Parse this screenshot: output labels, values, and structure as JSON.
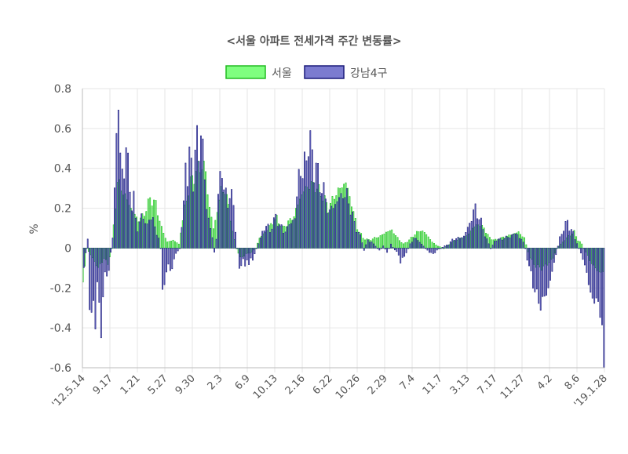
{
  "chart_data": {
    "type": "bar",
    "title": "<서울 아파트 전세가격 주간 변동률>",
    "ylabel": "%",
    "xlabel": "",
    "ylim": [
      -0.6,
      0.8
    ],
    "yticks": [
      "0.8",
      "0.6",
      "0.4",
      "0.2",
      "0",
      "-0.2",
      "-0.4",
      "-0.6"
    ],
    "ytick_values": [
      0.8,
      0.6,
      0.4,
      0.2,
      0,
      -0.2,
      -0.4,
      -0.6
    ],
    "xtick_labels": [
      "'12.5.14",
      "9.17",
      "1.21",
      "5.27",
      "9.30",
      "2.3",
      "6.9",
      "10.13",
      "2.16",
      "6.22",
      "10.26",
      "2.29",
      "7.4",
      "11.7",
      "3.13",
      "7.17",
      "11.27",
      "4.2",
      "8.6",
      "'19.1.28"
    ],
    "legend_position": "top",
    "grid": true,
    "colors": {
      "seoul_fill": "#7fff7f",
      "seoul_stroke": "#22bb22",
      "gangnam_fill": "#7b7bd0",
      "gangnam_stroke": "#1a1a7a",
      "grid": "#e6e6e6",
      "axis": "#bbbbbb"
    },
    "series": [
      {
        "name": "서울",
        "anchors": [
          [
            0,
            -0.18
          ],
          [
            2,
            0.0
          ],
          [
            5,
            -0.05
          ],
          [
            8,
            -0.1
          ],
          [
            11,
            -0.05
          ],
          [
            13,
            -0.08
          ],
          [
            15,
            0.0
          ],
          [
            18,
            0.33
          ],
          [
            20,
            0.3
          ],
          [
            23,
            0.24
          ],
          [
            26,
            0.18
          ],
          [
            29,
            0.14
          ],
          [
            32,
            0.17
          ],
          [
            35,
            0.25
          ],
          [
            38,
            0.22
          ],
          [
            41,
            0.1
          ],
          [
            44,
            0.03
          ],
          [
            47,
            0.04
          ],
          [
            50,
            0.02
          ],
          [
            53,
            0.2
          ],
          [
            56,
            0.33
          ],
          [
            59,
            0.38
          ],
          [
            62,
            0.42
          ],
          [
            64,
            0.38
          ],
          [
            66,
            0.2
          ],
          [
            68,
            0.1
          ],
          [
            70,
            0.18
          ],
          [
            72,
            0.3
          ],
          [
            74,
            0.28
          ],
          [
            76,
            0.22
          ],
          [
            78,
            0.08
          ],
          [
            80,
            0.0
          ],
          [
            82,
            -0.05
          ],
          [
            85,
            -0.03
          ],
          [
            88,
            -0.02
          ],
          [
            90,
            0.0
          ],
          [
            92,
            0.05
          ],
          [
            95,
            0.08
          ],
          [
            98,
            0.12
          ],
          [
            101,
            0.15
          ],
          [
            104,
            0.1
          ],
          [
            107,
            0.13
          ],
          [
            110,
            0.16
          ],
          [
            113,
            0.25
          ],
          [
            116,
            0.3
          ],
          [
            119,
            0.32
          ],
          [
            122,
            0.3
          ],
          [
            125,
            0.26
          ],
          [
            128,
            0.2
          ],
          [
            131,
            0.26
          ],
          [
            134,
            0.3
          ],
          [
            137,
            0.33
          ],
          [
            140,
            0.22
          ],
          [
            143,
            0.1
          ],
          [
            146,
            0.05
          ],
          [
            149,
            0.04
          ],
          [
            152,
            0.05
          ],
          [
            155,
            0.06
          ],
          [
            158,
            0.08
          ],
          [
            161,
            0.09
          ],
          [
            164,
            0.05
          ],
          [
            167,
            0.02
          ],
          [
            170,
            0.04
          ],
          [
            173,
            0.07
          ],
          [
            176,
            0.09
          ],
          [
            179,
            0.07
          ],
          [
            182,
            0.03
          ],
          [
            185,
            0.01
          ],
          [
            188,
            0.0
          ],
          [
            191,
            0.02
          ],
          [
            194,
            0.04
          ],
          [
            197,
            0.05
          ],
          [
            200,
            0.06
          ],
          [
            203,
            0.1
          ],
          [
            206,
            0.12
          ],
          [
            209,
            0.1
          ],
          [
            212,
            0.05
          ],
          [
            215,
            0.04
          ],
          [
            218,
            0.05
          ],
          [
            221,
            0.06
          ],
          [
            224,
            0.07
          ],
          [
            227,
            0.08
          ],
          [
            230,
            0.05
          ],
          [
            233,
            -0.05
          ],
          [
            236,
            -0.09
          ],
          [
            239,
            -0.1
          ],
          [
            242,
            -0.08
          ],
          [
            245,
            -0.05
          ],
          [
            247,
            0.0
          ],
          [
            250,
            0.03
          ],
          [
            253,
            0.06
          ],
          [
            256,
            0.08
          ],
          [
            258,
            0.04
          ],
          [
            260,
            0.02
          ],
          [
            262,
            -0.02
          ],
          [
            264,
            -0.06
          ],
          [
            266,
            -0.09
          ],
          [
            269,
            -0.12
          ],
          [
            271,
            -0.12
          ]
        ]
      },
      {
        "name": "강남4구",
        "anchors": [
          [
            0,
            -0.1
          ],
          [
            2,
            0.05
          ],
          [
            3,
            -0.3
          ],
          [
            4,
            -0.38
          ],
          [
            5,
            -0.25
          ],
          [
            6,
            -0.35
          ],
          [
            7,
            -0.2
          ],
          [
            8,
            -0.3
          ],
          [
            9,
            -0.37
          ],
          [
            10,
            -0.25
          ],
          [
            11,
            -0.15
          ],
          [
            13,
            -0.1
          ],
          [
            15,
            0.05
          ],
          [
            16,
            0.35
          ],
          [
            17,
            0.55
          ],
          [
            18,
            0.65
          ],
          [
            19,
            0.5
          ],
          [
            20,
            0.4
          ],
          [
            21,
            0.35
          ],
          [
            22,
            0.5
          ],
          [
            23,
            0.45
          ],
          [
            24,
            0.3
          ],
          [
            25,
            0.2
          ],
          [
            26,
            0.25
          ],
          [
            27,
            0.15
          ],
          [
            28,
            0.1
          ],
          [
            29,
            0.12
          ],
          [
            30,
            0.15
          ],
          [
            31,
            0.18
          ],
          [
            32,
            0.13
          ],
          [
            33,
            0.1
          ],
          [
            34,
            0.15
          ],
          [
            35,
            0.17
          ],
          [
            37,
            0.1
          ],
          [
            39,
            0.05
          ],
          [
            40,
            0.0
          ],
          [
            41,
            -0.2
          ],
          [
            42,
            -0.18
          ],
          [
            43,
            -0.12
          ],
          [
            44,
            -0.08
          ],
          [
            45,
            -0.12
          ],
          [
            46,
            -0.1
          ],
          [
            47,
            -0.05
          ],
          [
            48,
            -0.03
          ],
          [
            50,
            0.0
          ],
          [
            52,
            0.2
          ],
          [
            53,
            0.5
          ],
          [
            54,
            0.35
          ],
          [
            55,
            0.42
          ],
          [
            56,
            0.45
          ],
          [
            57,
            0.35
          ],
          [
            58,
            0.45
          ],
          [
            59,
            0.55
          ],
          [
            60,
            0.5
          ],
          [
            61,
            0.58
          ],
          [
            62,
            0.5
          ],
          [
            63,
            0.35
          ],
          [
            64,
            0.2
          ],
          [
            65,
            0.15
          ],
          [
            66,
            0.1
          ],
          [
            67,
            0.05
          ],
          [
            68,
            -0.02
          ],
          [
            69,
            0.05
          ],
          [
            70,
            0.25
          ],
          [
            71,
            0.35
          ],
          [
            72,
            0.42
          ],
          [
            73,
            0.3
          ],
          [
            74,
            0.25
          ],
          [
            75,
            0.22
          ],
          [
            76,
            0.3
          ],
          [
            77,
            0.25
          ],
          [
            78,
            0.2
          ],
          [
            79,
            0.1
          ],
          [
            80,
            0.0
          ],
          [
            81,
            -0.12
          ],
          [
            82,
            -0.08
          ],
          [
            83,
            -0.05
          ],
          [
            84,
            -0.1
          ],
          [
            85,
            -0.06
          ],
          [
            86,
            -0.08
          ],
          [
            87,
            -0.05
          ],
          [
            88,
            -0.06
          ],
          [
            90,
            0.0
          ],
          [
            92,
            0.05
          ],
          [
            94,
            0.1
          ],
          [
            95,
            0.12
          ],
          [
            97,
            0.08
          ],
          [
            98,
            0.12
          ],
          [
            100,
            0.15
          ],
          [
            102,
            0.12
          ],
          [
            104,
            0.08
          ],
          [
            106,
            0.1
          ],
          [
            108,
            0.13
          ],
          [
            110,
            0.15
          ],
          [
            111,
            0.25
          ],
          [
            112,
            0.38
          ],
          [
            113,
            0.4
          ],
          [
            114,
            0.35
          ],
          [
            115,
            0.42
          ],
          [
            116,
            0.48
          ],
          [
            117,
            0.53
          ],
          [
            118,
            0.5
          ],
          [
            119,
            0.47
          ],
          [
            120,
            0.42
          ],
          [
            121,
            0.4
          ],
          [
            122,
            0.36
          ],
          [
            123,
            0.33
          ],
          [
            124,
            0.3
          ],
          [
            125,
            0.28
          ],
          [
            126,
            0.25
          ],
          [
            127,
            0.2
          ],
          [
            128,
            0.18
          ],
          [
            129,
            0.2
          ],
          [
            131,
            0.22
          ],
          [
            133,
            0.25
          ],
          [
            135,
            0.27
          ],
          [
            137,
            0.26
          ],
          [
            139,
            0.2
          ],
          [
            141,
            0.12
          ],
          [
            143,
            0.08
          ],
          [
            145,
            0.03
          ],
          [
            146,
            -0.01
          ],
          [
            148,
            0.04
          ],
          [
            150,
            0.03
          ],
          [
            152,
            0.01
          ],
          [
            154,
            -0.01
          ],
          [
            156,
            0.01
          ],
          [
            158,
            -0.02
          ],
          [
            160,
            0.02
          ],
          [
            162,
            -0.01
          ],
          [
            164,
            -0.03
          ],
          [
            165,
            -0.07
          ],
          [
            166,
            -0.06
          ],
          [
            167,
            -0.04
          ],
          [
            168,
            -0.02
          ],
          [
            170,
            0.02
          ],
          [
            172,
            0.05
          ],
          [
            174,
            0.04
          ],
          [
            176,
            0.02
          ],
          [
            178,
            0.0
          ],
          [
            180,
            -0.02
          ],
          [
            182,
            -0.03
          ],
          [
            184,
            -0.01
          ],
          [
            186,
            0.0
          ],
          [
            188,
            0.01
          ],
          [
            190,
            0.02
          ],
          [
            192,
            0.04
          ],
          [
            194,
            0.05
          ],
          [
            196,
            0.05
          ],
          [
            198,
            0.06
          ],
          [
            200,
            0.1
          ],
          [
            202,
            0.15
          ],
          [
            203,
            0.18
          ],
          [
            204,
            0.2
          ],
          [
            206,
            0.15
          ],
          [
            208,
            0.1
          ],
          [
            210,
            0.04
          ],
          [
            212,
            0.0
          ],
          [
            214,
            0.03
          ],
          [
            216,
            0.05
          ],
          [
            218,
            0.04
          ],
          [
            220,
            0.06
          ],
          [
            222,
            0.05
          ],
          [
            224,
            0.08
          ],
          [
            226,
            0.06
          ],
          [
            228,
            0.05
          ],
          [
            230,
            0.0
          ],
          [
            232,
            -0.1
          ],
          [
            234,
            -0.17
          ],
          [
            236,
            -0.25
          ],
          [
            238,
            -0.28
          ],
          [
            240,
            -0.25
          ],
          [
            242,
            -0.2
          ],
          [
            244,
            -0.12
          ],
          [
            246,
            -0.03
          ],
          [
            248,
            0.05
          ],
          [
            250,
            0.1
          ],
          [
            252,
            0.13
          ],
          [
            254,
            0.09
          ],
          [
            256,
            0.05
          ],
          [
            258,
            0.0
          ],
          [
            260,
            -0.05
          ],
          [
            262,
            -0.13
          ],
          [
            264,
            -0.22
          ],
          [
            266,
            -0.28
          ],
          [
            268,
            -0.25
          ],
          [
            269,
            -0.33
          ],
          [
            270,
            -0.45
          ],
          [
            271,
            -0.59
          ]
        ]
      }
    ]
  }
}
